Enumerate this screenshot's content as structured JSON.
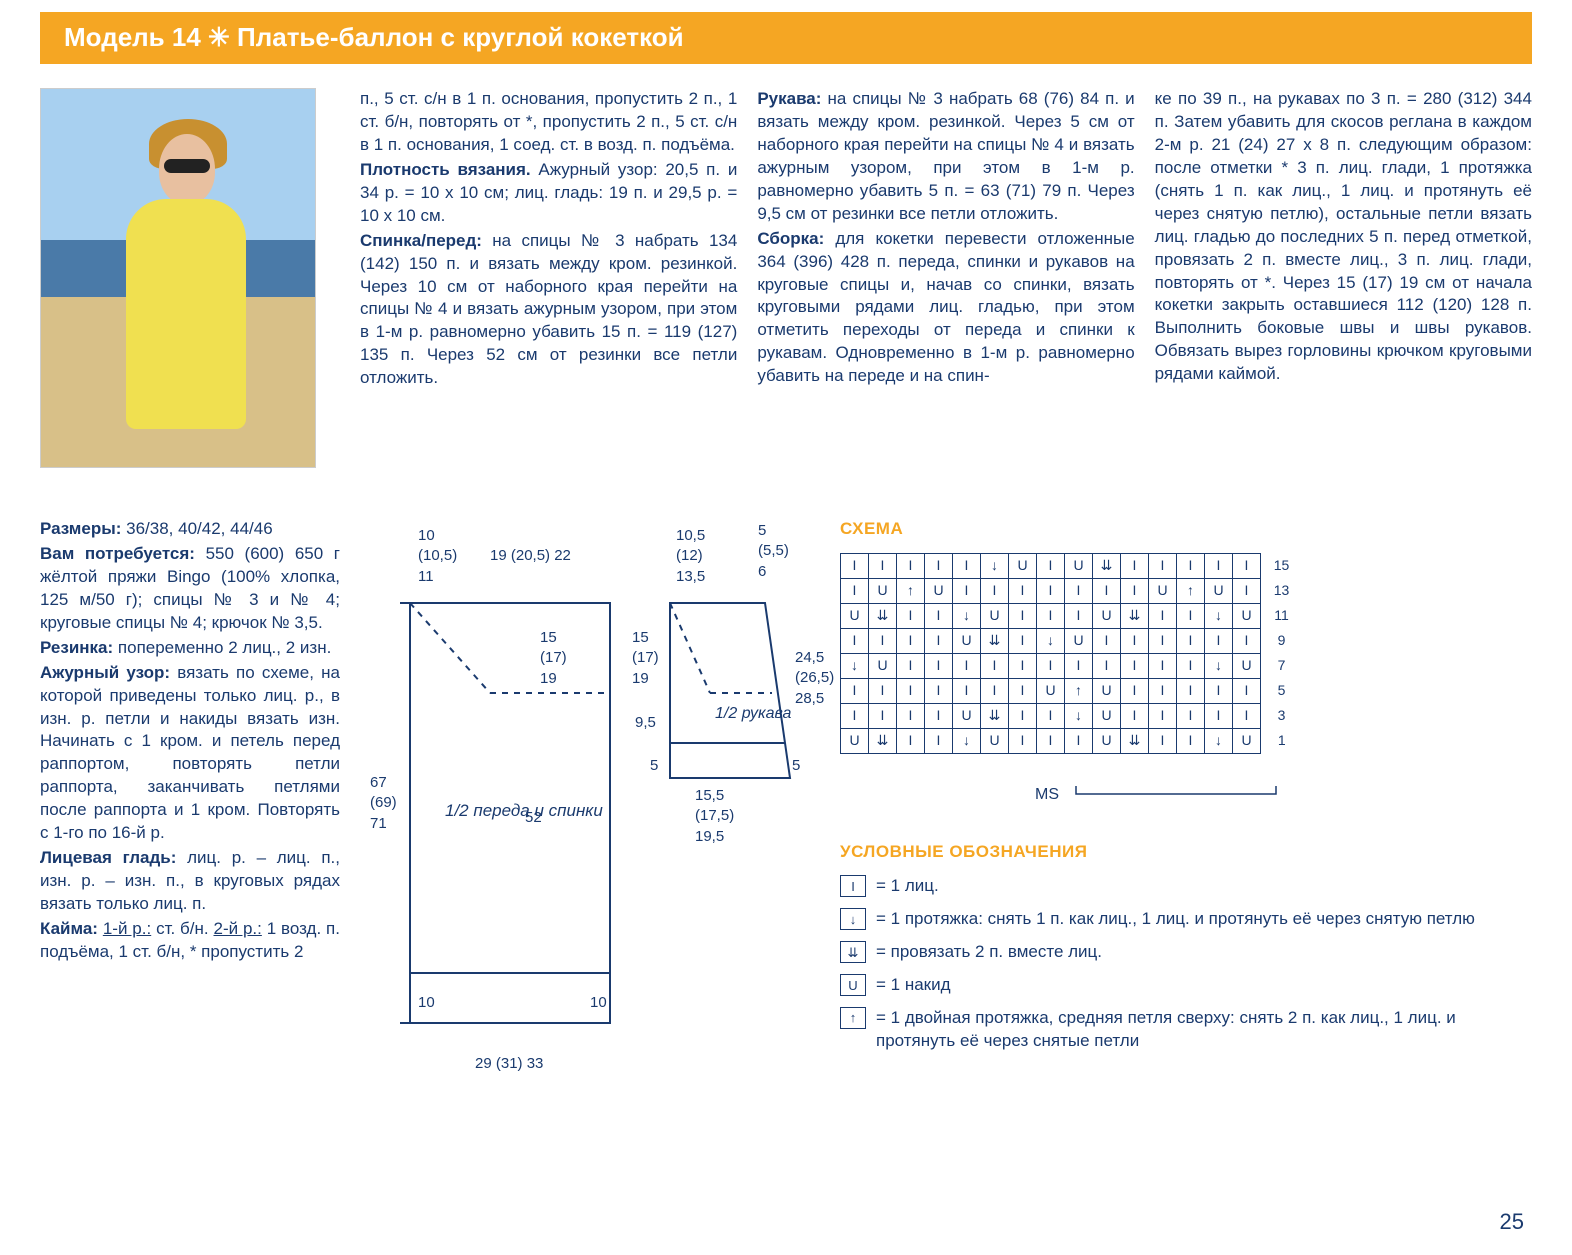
{
  "banner": {
    "title": "Модель 14 ✳ Платье-баллон с круглой кокеткой"
  },
  "col1": {
    "sizes_label": "Размеры:",
    "sizes": "36/38, 40/42, 44/46",
    "need_label": "Вам потребуется:",
    "need": "550 (600) 650 г жёлтой пряжи Bingo (100% хлопка, 125 м/50 г); спицы № 3 и № 4; круговые спицы № 4; крючок № 3,5.",
    "rib_label": "Резинка:",
    "rib": "попеременно 2 лиц., 2 изн.",
    "lace_label": "Ажурный узор:",
    "lace": "вязать по схеме, на которой приведены только лиц. р., в изн. р. петли и накиды вязать изн. Начинать с 1 кром. и петель перед раппортом, повторять петли раппорта, заканчивать петлями после раппорта и 1 кром. Повторять с 1-го по 16-й р.",
    "stst_label": "Лицевая гладь:",
    "stst": "лиц. р. – лиц. п., изн. р. – изн. п., в круговых рядах вязать только лиц. п.",
    "edge_label": "Кайма:",
    "edge_r1_label": "1-й р.:",
    "edge_r1": "ст. б/н.",
    "edge_r2_label": "2-й р.:",
    "edge_r2": "1 возд. п. подъёма, 1 ст. б/н, * пропустить 2"
  },
  "col2": {
    "p1": "п., 5 ст. с/н в 1 п. основания, пропустить 2 п., 1 ст. б/н, повторять от *, пропустить 2 п., 5 ст. с/н в 1 п. основания, 1 соед. ст. в возд. п. подъёма.",
    "gauge_label": "Плотность вязания.",
    "gauge": "Ажурный узор: 20,5 п. и 34 р. = 10 x 10 см; лиц. гладь: 19 п. и 29,5 р. = 10 x 10 см.",
    "back_label": "Спинка/перед:",
    "back": "на спицы № 3 набрать 134 (142) 150 п. и вязать между кром. резинкой. Через 10 см от наборного края перейти на спицы № 4 и вязать ажурным узором, при этом в 1-м р. равномерно убавить 15 п. = 119 (127) 135 п. Через 52 см от резинки все петли отложить."
  },
  "col3": {
    "sleeve_label": "Рукава:",
    "sleeve": "на спицы № 3 набрать 68 (76) 84 п. и вязать между кром. резинкой. Через 5 см от наборного края перейти на спицы № 4 и вязать ажурным узором, при этом в 1-м р. равномерно убавить 5 п. = 63 (71) 79 п. Через 9,5 см от резинки все петли отложить.",
    "asm_label": "Сборка:",
    "asm": "для кокетки перевести отложенные 364 (396) 428 п. переда, спинки и рукавов на круговые спицы и, начав со спинки, вязать круговыми рядами лиц. гладью, при этом отметить переходы от переда и спинки к рукавам. Одновременно в 1-м р. равномерно убавить на переде и на спин-"
  },
  "col4": {
    "p1": "ке по 39 п., на рукавах по 3 п. = 280 (312) 344 п. Затем убавить для скосов реглана в каждом 2-м р. 21 (24) 27 x 8 п. следующим образом: после отметки * 3 п. лиц. глади, 1 протяжка (снять 1 п. как лиц., 1 лиц. и протянуть её через снятую петлю), остальные петли вязать лиц. гладью до последних 5 п. перед отметкой, провязать 2 п. вместе лиц., 3 п. лиц. глади, повторять от *. Через 15 (17) 19 см от начала кокетки закрыть оставшиеся 112 (120) 128 п. Выполнить боковые швы и швы рукавов. Обвязать вырез горловины крючком круговыми рядами каймой."
  },
  "schematic": {
    "body_label": "1/2 переда и спинки",
    "sleeve_label": "1/2 рукава",
    "m_top_a": "10\n(10,5)\n11",
    "m_top_b": "19 (20,5) 22",
    "m_top_c": "10,5\n(12)\n13,5",
    "m_top_d": "5\n(5,5)\n6",
    "m_left": "67\n(69)\n71",
    "m_mid_a": "15\n(17)\n19",
    "m_mid_b": "15\n(17)\n19",
    "m_right": "24,5\n(26,5)\n28,5",
    "m_52": "52",
    "m_95": "9,5",
    "m_5a": "5",
    "m_5b": "5",
    "m_10a": "10",
    "m_10b": "10",
    "m_bottom_sleeve": "15,5\n(17,5)\n19,5",
    "m_bottom_body": "29 (31) 33"
  },
  "chart": {
    "title": "СХЕМА",
    "ms": "MS",
    "row_labels": [
      "15",
      "13",
      "11",
      "9",
      "7",
      "5",
      "3",
      "1"
    ],
    "grid": [
      [
        "I",
        "I",
        "I",
        "I",
        "I",
        "↓",
        "U",
        "I",
        "U",
        "⇊",
        "I",
        "I",
        "I",
        "I",
        "I"
      ],
      [
        "I",
        "U",
        "↑",
        "U",
        "I",
        "I",
        "I",
        "I",
        "I",
        "I",
        "I",
        "U",
        "↑",
        "U",
        "I"
      ],
      [
        "U",
        "⇊",
        "I",
        "I",
        "↓",
        "U",
        "I",
        "I",
        "I",
        "U",
        "⇊",
        "I",
        "I",
        "↓",
        "U"
      ],
      [
        "I",
        "I",
        "I",
        "I",
        "U",
        "⇊",
        "I",
        "↓",
        "U",
        "I",
        "I",
        "I",
        "I",
        "I",
        "I"
      ],
      [
        "↓",
        "U",
        "I",
        "I",
        "I",
        "I",
        "I",
        "I",
        "I",
        "I",
        "I",
        "I",
        "I",
        "↓",
        "U"
      ],
      [
        "I",
        "I",
        "I",
        "I",
        "I",
        "I",
        "I",
        "U",
        "↑",
        "U",
        "I",
        "I",
        "I",
        "I",
        "I"
      ],
      [
        "I",
        "I",
        "I",
        "I",
        "U",
        "⇊",
        "I",
        "I",
        "↓",
        "U",
        "I",
        "I",
        "I",
        "I",
        "I"
      ],
      [
        "U",
        "⇊",
        "I",
        "I",
        "↓",
        "U",
        "I",
        "I",
        "I",
        "U",
        "⇊",
        "I",
        "I",
        "↓",
        "U"
      ]
    ]
  },
  "legend": {
    "title": "УСЛОВНЫЕ ОБОЗНАЧЕНИЯ",
    "items": [
      {
        "sym": "I",
        "txt": "= 1 лиц."
      },
      {
        "sym": "↓",
        "txt": "= 1 протяжка: снять 1 п. как лиц., 1 лиц. и протянуть её через снятую петлю"
      },
      {
        "sym": "⇊",
        "txt": "= провязать 2 п. вместе лиц."
      },
      {
        "sym": "U",
        "txt": "= 1 накид"
      },
      {
        "sym": "↑",
        "txt": "= 1 двойная протяжка, средняя петля сверху: снять 2 п. как лиц., 1 лиц. и протянуть её через снятые петли"
      }
    ]
  },
  "page_number": "25",
  "colors": {
    "banner": "#f5a623",
    "text": "#1a3a6e"
  }
}
